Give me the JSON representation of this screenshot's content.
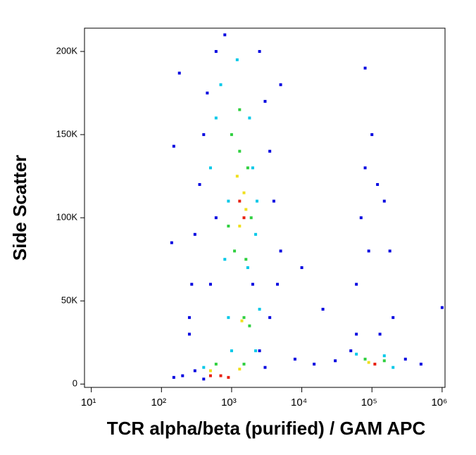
{
  "chart_data": {
    "type": "scatter",
    "x_label": "TCR alpha/beta (purified) / GAM APC",
    "y_label": "Side Scatter",
    "x_scale": "log",
    "xlim": [
      8,
      1100000
    ],
    "xticks": [
      {
        "value": 10,
        "label": "10¹"
      },
      {
        "value": 100,
        "label": "10²"
      },
      {
        "value": 1000,
        "label": "10³"
      },
      {
        "value": 10000,
        "label": "10⁴"
      },
      {
        "value": 100000,
        "label": "10⁵"
      },
      {
        "value": 1000000,
        "label": "10⁶"
      }
    ],
    "ylim": [
      -2000,
      214000
    ],
    "yticks": [
      0,
      {
        "value": 50000,
        "label": "50K"
      },
      {
        "value": 100000,
        "label": "100K"
      },
      {
        "value": 150000,
        "label": "150K"
      },
      {
        "value": 200000,
        "label": "200K"
      }
    ],
    "series": [
      {
        "color": "#0000e0",
        "x": [
          150,
          140,
          200,
          300,
          250,
          270,
          300,
          350,
          400,
          450,
          600,
          800,
          2500,
          3000,
          3500,
          4000,
          5000,
          4500,
          3500,
          2500,
          8000,
          15000,
          30000,
          50000,
          60000,
          70000,
          80000,
          100000,
          150000,
          180000,
          200000,
          300000,
          500000,
          400,
          150,
          250,
          5000,
          180,
          80000,
          1000000,
          130000,
          60000,
          90000,
          120000,
          20000,
          10000,
          600,
          500,
          2000,
          3000
        ],
        "y": [
          143000,
          85000,
          5000,
          8000,
          40000,
          60000,
          90000,
          120000,
          150000,
          175000,
          200000,
          210000,
          200000,
          170000,
          140000,
          110000,
          80000,
          60000,
          40000,
          20000,
          15000,
          12000,
          14000,
          20000,
          60000,
          100000,
          130000,
          150000,
          110000,
          80000,
          40000,
          15000,
          12000,
          3000,
          4000,
          30000,
          180000,
          187000,
          190000,
          46000,
          30000,
          30000,
          80000,
          120000,
          45000,
          70000,
          100000,
          60000,
          60000,
          10000
        ]
      },
      {
        "color": "#00c8e8",
        "x": [
          500,
          600,
          700,
          1800,
          2000,
          2200,
          1700,
          800,
          900,
          2500,
          1000,
          2200,
          400,
          60000,
          150000,
          200000,
          1200,
          900,
          2300
        ],
        "y": [
          130000,
          160000,
          180000,
          160000,
          130000,
          90000,
          70000,
          75000,
          40000,
          45000,
          20000,
          20000,
          10000,
          18000,
          17000,
          10000,
          195000,
          110000,
          110000
        ]
      },
      {
        "color": "#30d040",
        "x": [
          1000,
          1300,
          1700,
          900,
          1100,
          1600,
          1500,
          1800,
          600,
          1500,
          80000,
          150000,
          1900,
          1300
        ],
        "y": [
          150000,
          140000,
          130000,
          95000,
          80000,
          75000,
          40000,
          35000,
          12000,
          12000,
          15000,
          14000,
          100000,
          165000
        ]
      },
      {
        "color": "#f0e020",
        "x": [
          1200,
          1500,
          1300,
          1600,
          500,
          1300,
          90000,
          1400
        ],
        "y": [
          125000,
          115000,
          95000,
          105000,
          8000,
          9000,
          13000,
          38000
        ]
      },
      {
        "color": "#e82010",
        "x": [
          1500,
          700,
          900,
          500,
          110000,
          1300
        ],
        "y": [
          100000,
          5000,
          4000,
          5000,
          12000,
          110000
        ]
      }
    ]
  }
}
